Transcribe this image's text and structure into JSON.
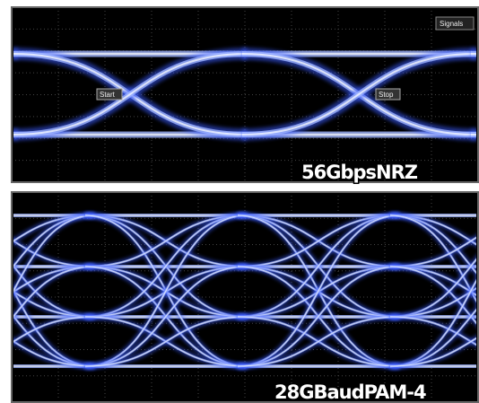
{
  "panels": [
    {
      "label": "56GbpsNRZ",
      "markers": [
        "Start",
        "Stop"
      ],
      "menu": "Signals"
    },
    {
      "label": "28GBaudPAM-4"
    }
  ]
}
